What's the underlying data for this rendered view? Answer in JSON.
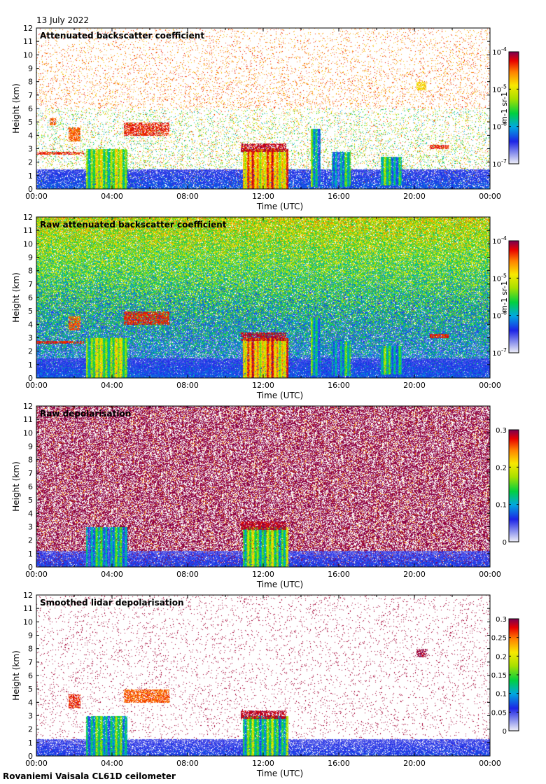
{
  "date_label": "13 July 2022",
  "footer_label": "Rovaniemi Vaisala CL61D ceilometer",
  "xlabel": "Time (UTC)",
  "ylabel": "Height (km)",
  "x_ticks": [
    "00:00",
    "04:00",
    "08:00",
    "12:00",
    "16:00",
    "20:00",
    "00:00"
  ],
  "y_ticks": [
    "0",
    "1",
    "2",
    "3",
    "4",
    "5",
    "6",
    "7",
    "8",
    "9",
    "10",
    "11",
    "12"
  ],
  "chart_data": [
    {
      "type": "heatmap",
      "title": "Attenuated backscatter coefficient",
      "xlabel": "Time (UTC)",
      "ylabel": "Height (km)",
      "xlim_hours": [
        0,
        24
      ],
      "ylim_km": [
        0,
        12
      ],
      "colorbar": {
        "scale": "log",
        "range": [
          1e-07,
          0.0001
        ],
        "ticks": [
          "10-7",
          "10-6",
          "10-5",
          "10-4"
        ],
        "unit_label": "m-1 sr-1"
      },
      "background": "sparse",
      "features": [
        {
          "kind": "surface_layer",
          "t0": 0,
          "t1": 24,
          "top_km": 1.5,
          "level": 0.15
        },
        {
          "kind": "cloud_column",
          "t0": 2.6,
          "t1": 4.8,
          "h0": 0,
          "h1": 3.0,
          "level": 0.55
        },
        {
          "kind": "cloud_column",
          "t0": 10.9,
          "t1": 13.3,
          "h0": 0,
          "h1": 3.0,
          "level": 0.75
        },
        {
          "kind": "cloud_column",
          "t0": 14.5,
          "t1": 15.0,
          "h0": 0.2,
          "h1": 4.5,
          "level": 0.4
        },
        {
          "kind": "cloud_column",
          "t0": 15.6,
          "t1": 16.6,
          "h0": 0.2,
          "h1": 2.8,
          "level": 0.35
        },
        {
          "kind": "cloud_column",
          "t0": 18.2,
          "t1": 19.3,
          "h0": 0.3,
          "h1": 2.4,
          "level": 0.4
        },
        {
          "kind": "layer",
          "t0": 4.6,
          "t1": 7.0,
          "h0": 4.0,
          "h1": 5.0,
          "level": 0.9
        },
        {
          "kind": "layer",
          "t0": 1.7,
          "t1": 2.3,
          "h0": 3.6,
          "h1": 4.6,
          "level": 0.85
        },
        {
          "kind": "layer",
          "t0": 0.7,
          "t1": 1.0,
          "h0": 4.8,
          "h1": 5.3,
          "level": 0.85
        },
        {
          "kind": "layer",
          "t0": 0,
          "t1": 2.5,
          "h0": 2.6,
          "h1": 2.8,
          "level": 0.9
        },
        {
          "kind": "layer",
          "t0": 10.8,
          "t1": 13.2,
          "h0": 2.8,
          "h1": 3.4,
          "level": 0.95
        },
        {
          "kind": "layer",
          "t0": 20.1,
          "t1": 20.6,
          "h0": 7.4,
          "h1": 8.0,
          "level": 0.72
        },
        {
          "kind": "layer",
          "t0": 20.8,
          "t1": 21.8,
          "h0": 3.0,
          "h1": 3.3,
          "level": 0.9
        }
      ]
    },
    {
      "type": "heatmap",
      "title": "Raw attenuated backscatter coefficient",
      "xlabel": "Time (UTC)",
      "ylabel": "Height (km)",
      "xlim_hours": [
        0,
        24
      ],
      "ylim_km": [
        0,
        12
      ],
      "colorbar": {
        "scale": "log",
        "range": [
          1e-07,
          0.0001
        ],
        "ticks": [
          "10-7",
          "10-6",
          "10-5",
          "10-4"
        ],
        "unit_label": "m-1 sr-1"
      },
      "background": "noise_gradient",
      "features": [
        {
          "kind": "surface_layer",
          "t0": 0,
          "t1": 24,
          "top_km": 1.5,
          "level": 0.15
        },
        {
          "kind": "cloud_column",
          "t0": 2.6,
          "t1": 4.8,
          "h0": 0,
          "h1": 3.0,
          "level": 0.55
        },
        {
          "kind": "cloud_column",
          "t0": 10.9,
          "t1": 13.3,
          "h0": 0,
          "h1": 3.0,
          "level": 0.75
        },
        {
          "kind": "cloud_column",
          "t0": 14.5,
          "t1": 15.0,
          "h0": 0.2,
          "h1": 4.5,
          "level": 0.4
        },
        {
          "kind": "cloud_column",
          "t0": 15.6,
          "t1": 16.6,
          "h0": 0.2,
          "h1": 2.8,
          "level": 0.35
        },
        {
          "kind": "cloud_column",
          "t0": 18.2,
          "t1": 19.3,
          "h0": 0.3,
          "h1": 2.4,
          "level": 0.4
        },
        {
          "kind": "layer",
          "t0": 4.6,
          "t1": 7.0,
          "h0": 4.0,
          "h1": 5.0,
          "level": 0.9
        },
        {
          "kind": "layer",
          "t0": 1.7,
          "t1": 2.3,
          "h0": 3.6,
          "h1": 4.6,
          "level": 0.85
        },
        {
          "kind": "layer",
          "t0": 0,
          "t1": 2.5,
          "h0": 2.6,
          "h1": 2.8,
          "level": 0.9
        },
        {
          "kind": "layer",
          "t0": 10.8,
          "t1": 13.2,
          "h0": 2.8,
          "h1": 3.4,
          "level": 0.95
        },
        {
          "kind": "layer",
          "t0": 20.8,
          "t1": 21.8,
          "h0": 3.0,
          "h1": 3.3,
          "level": 0.9
        }
      ]
    },
    {
      "type": "heatmap",
      "title": "Raw depolarisation",
      "xlabel": "Time (UTC)",
      "ylabel": "Height (km)",
      "xlim_hours": [
        0,
        24
      ],
      "ylim_km": [
        0,
        12
      ],
      "colorbar": {
        "scale": "linear",
        "range": [
          0,
          0.3
        ],
        "ticks": [
          "0",
          "0.1",
          "0.2",
          "0.3"
        ],
        "unit_label": ""
      },
      "background": "purple_noise",
      "features": [
        {
          "kind": "surface_layer",
          "t0": 0,
          "t1": 24,
          "top_km": 1.2,
          "level": 0.12
        },
        {
          "kind": "cloud_column",
          "t0": 2.6,
          "t1": 4.8,
          "h0": 0,
          "h1": 3.0,
          "level": 0.35
        },
        {
          "kind": "cloud_column",
          "t0": 10.9,
          "t1": 13.3,
          "h0": 0,
          "h1": 3.0,
          "level": 0.5
        },
        {
          "kind": "layer",
          "t0": 10.8,
          "t1": 13.2,
          "h0": 2.8,
          "h1": 3.4,
          "level": 0.95
        }
      ]
    },
    {
      "type": "heatmap",
      "title": "Smoothed lidar depolarisation",
      "xlabel": "Time (UTC)",
      "ylabel": "Height (km)",
      "xlim_hours": [
        0,
        24
      ],
      "ylim_km": [
        0,
        12
      ],
      "colorbar": {
        "scale": "linear",
        "range": [
          0,
          0.3
        ],
        "ticks": [
          "0",
          "0.05",
          "0.1",
          "0.15",
          "0.2",
          "0.25",
          "0.3"
        ],
        "unit_label": ""
      },
      "background": "sparse_purple",
      "features": [
        {
          "kind": "surface_layer",
          "t0": 0,
          "t1": 24,
          "top_km": 1.3,
          "level": 0.12
        },
        {
          "kind": "cloud_column",
          "t0": 2.6,
          "t1": 4.8,
          "h0": 0,
          "h1": 3.0,
          "level": 0.4
        },
        {
          "kind": "cloud_column",
          "t0": 10.9,
          "t1": 13.3,
          "h0": 0,
          "h1": 3.0,
          "level": 0.45
        },
        {
          "kind": "layer",
          "t0": 4.6,
          "t1": 7.0,
          "h0": 4.0,
          "h1": 5.0,
          "level": 0.85
        },
        {
          "kind": "layer",
          "t0": 1.7,
          "t1": 2.3,
          "h0": 3.6,
          "h1": 4.6,
          "level": 0.9
        },
        {
          "kind": "layer",
          "t0": 10.8,
          "t1": 13.2,
          "h0": 2.8,
          "h1": 3.4,
          "level": 0.95
        },
        {
          "kind": "layer",
          "t0": 20.1,
          "t1": 20.6,
          "h0": 7.4,
          "h1": 8.0,
          "level": 0.98
        }
      ]
    }
  ]
}
